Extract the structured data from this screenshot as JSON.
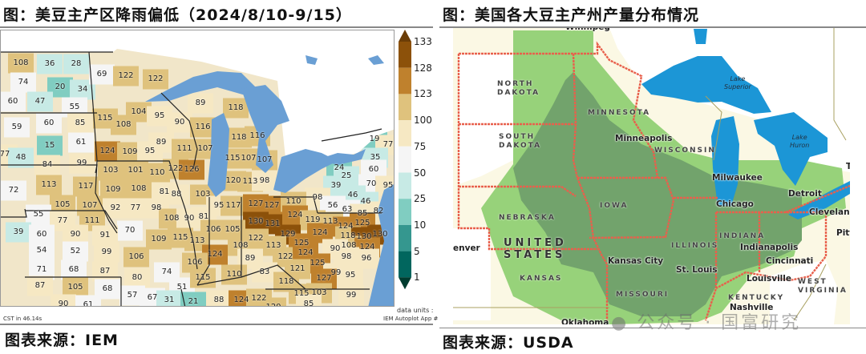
{
  "left_panel": {
    "title": "图：美豆主产区降雨偏低（2024/8/10-9/15）",
    "source": "图表来源：IEM",
    "footnote_left": "CST in 46.14s",
    "footnote_units": "data units :",
    "footnote_app": "IEM Autoplot App #",
    "colorbar": {
      "ticks": [
        "133",
        "128",
        "123",
        "100",
        "75",
        "50",
        "25",
        "10",
        "5",
        "1"
      ],
      "colors": [
        "#6b3d07",
        "#8c510a",
        "#bf812d",
        "#dfc27d",
        "#f6e8c3",
        "#f5f5f5",
        "#c7eae5",
        "#80cdc1",
        "#35978f",
        "#01665e",
        "#003c30"
      ]
    },
    "county_values": [
      108,
      36,
      28,
      74,
      20,
      34,
      60,
      47,
      55,
      69,
      122,
      122,
      115,
      108,
      104,
      95,
      90,
      89,
      59,
      60,
      85,
      15,
      61,
      77,
      48,
      84,
      99,
      124,
      109,
      95,
      111,
      122,
      126,
      89,
      118,
      116,
      118,
      116,
      107,
      115,
      107,
      107,
      19,
      77,
      35,
      24,
      60,
      103,
      101,
      110,
      72,
      113,
      117,
      109,
      108,
      81,
      88,
      105,
      107,
      92,
      77,
      98,
      108,
      90,
      55,
      77,
      111,
      39,
      70,
      109,
      115,
      60,
      90,
      91,
      54,
      52,
      99,
      106,
      71,
      68,
      87,
      74,
      80,
      87,
      105,
      68,
      51,
      57,
      67,
      31,
      21,
      90,
      61,
      120,
      113,
      98,
      25,
      39,
      70,
      95,
      103,
      98,
      46,
      56,
      46,
      63,
      85,
      82,
      95,
      117,
      127,
      127,
      110,
      81,
      130,
      131,
      124,
      119,
      113,
      124,
      125,
      106,
      105,
      129,
      118,
      130,
      130,
      122,
      113,
      108,
      113,
      125,
      124,
      108,
      124,
      124,
      89,
      122,
      124,
      90,
      98,
      96,
      106,
      83,
      125,
      121,
      115,
      110,
      99,
      95,
      127,
      118,
      115,
      103,
      88,
      124,
      122,
      99,
      85,
      120
    ],
    "water_color": "#6a9fd4"
  },
  "right_panel": {
    "title": "图：美国各大豆主产州产量分布情况",
    "source": "图表来源：USDA",
    "state_labels": [
      {
        "text": "NORTH\nDAKOTA"
      },
      {
        "text": "SOUTH\nDAKOTA"
      },
      {
        "text": "MINNESOTA"
      },
      {
        "text": "WISCONSIN"
      },
      {
        "text": "NEBRASKA"
      },
      {
        "text": "IOWA"
      },
      {
        "text": "KANSAS"
      },
      {
        "text": "MISSOURI"
      },
      {
        "text": "ILLINOIS"
      },
      {
        "text": "INDIANA"
      },
      {
        "text": "KENTUCKY"
      },
      {
        "text": "WEST\nVIRGINIA"
      }
    ],
    "country_label": "UNITED\nSTATES",
    "cities": [
      "Winnipeg",
      "Minneapolis",
      "Milwaukee",
      "Chicago",
      "Detroit",
      "Cleveland",
      "Pitt",
      "Kansas City",
      "St. Louis",
      "Indianapolis",
      "Cincinnati",
      "Louisville",
      "Nashville",
      "enver",
      "To",
      "Oklahoma"
    ],
    "lakes": [
      "Lake\nSuperior",
      "Lake\nHuron"
    ],
    "colors": {
      "high": "#72a36c",
      "medium": "#97d27a",
      "low": "#f7f2d4",
      "water": "#1c96d6",
      "border": "#e8604c"
    }
  },
  "watermark": "公众号 · 国富研究"
}
